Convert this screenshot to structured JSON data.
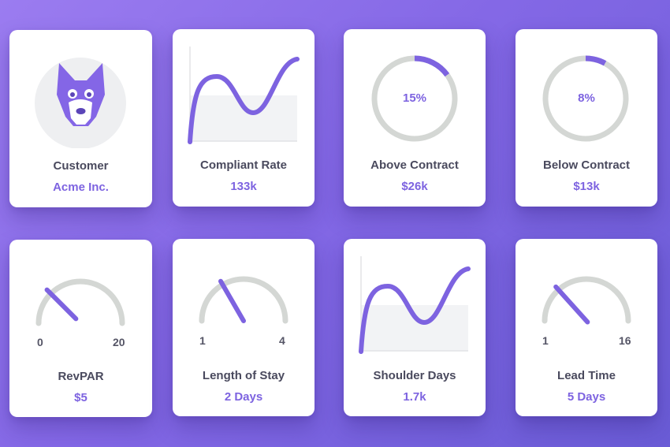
{
  "colors": {
    "accent": "#7d63e0",
    "track": "#d4d7d4",
    "area": "#f2f3f5",
    "text": "#4a4a5e"
  },
  "cards": {
    "customer": {
      "icon": "wolf-icon",
      "label": "Customer",
      "value": "Acme Inc."
    },
    "compliant_rate": {
      "label": "Compliant Rate",
      "value": "133k"
    },
    "above_contract": {
      "label": "Above Contract",
      "value": "$26k",
      "percent_text": "15%",
      "percent": 15
    },
    "below_contract": {
      "label": "Below Contract",
      "value": "$13k",
      "percent_text": "8%",
      "percent": 8
    },
    "revpar": {
      "label": "RevPAR",
      "value": "$5",
      "min": "0",
      "max": "20",
      "level": 5,
      "range": [
        0,
        20
      ]
    },
    "length_of_stay": {
      "label": "Length of Stay",
      "value": "2 Days",
      "min": "1",
      "max": "4",
      "level": 2,
      "range": [
        1,
        4
      ]
    },
    "shoulder_days": {
      "label": "Shoulder Days",
      "value": "1.7k"
    },
    "lead_time": {
      "label": "Lead Time",
      "value": "5 Days",
      "min": "1",
      "max": "16",
      "level": 5,
      "range": [
        1,
        16
      ]
    }
  }
}
